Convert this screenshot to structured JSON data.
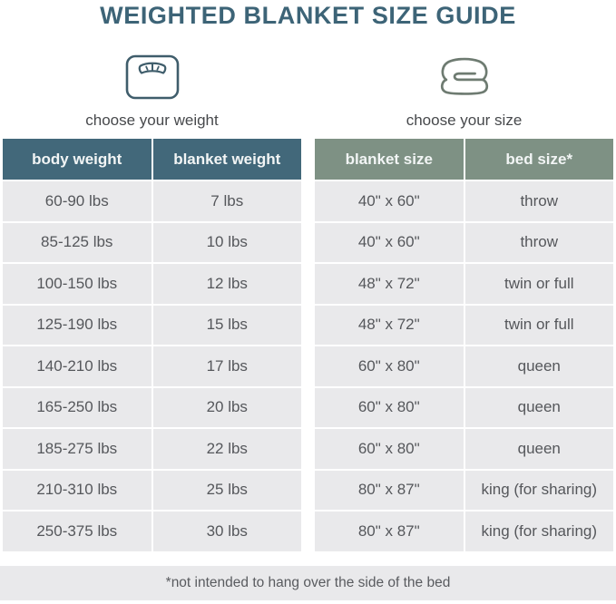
{
  "title": "WEIGHTED BLANKET SIZE GUIDE",
  "weight_section": {
    "icon": "scale-icon",
    "caption": "choose your weight",
    "columns": [
      "body weight",
      "blanket weight"
    ],
    "rows": [
      [
        "60-90 lbs",
        "7 lbs"
      ],
      [
        "85-125 lbs",
        "10 lbs"
      ],
      [
        "100-150 lbs",
        "12 lbs"
      ],
      [
        "125-190 lbs",
        "15 lbs"
      ],
      [
        "140-210 lbs",
        "17 lbs"
      ],
      [
        "165-250 lbs",
        "20 lbs"
      ],
      [
        "185-275 lbs",
        "22 lbs"
      ],
      [
        "210-310 lbs",
        "25 lbs"
      ],
      [
        "250-375 lbs",
        "30 lbs"
      ]
    ]
  },
  "size_section": {
    "icon": "blanket-icon",
    "caption": "choose your size",
    "columns": [
      "blanket size",
      "bed size*"
    ],
    "rows": [
      [
        "40\" x 60\"",
        "throw"
      ],
      [
        "40\" x 60\"",
        "throw"
      ],
      [
        "48\" x 72\"",
        "twin or full"
      ],
      [
        "48\" x 72\"",
        "twin or full"
      ],
      [
        "60\" x 80\"",
        "queen"
      ],
      [
        "60\" x 80\"",
        "queen"
      ],
      [
        "60\" x 80\"",
        "queen"
      ],
      [
        "80\" x 87\"",
        "king (for sharing)"
      ],
      [
        "80\" x 87\"",
        "king (for sharing)"
      ]
    ]
  },
  "footnote": "*not intended to hang over the side of the bed",
  "colors": {
    "title": "#3d6477",
    "weight_header_bg": "#42687a",
    "size_header_bg": "#7e9184",
    "header_text": "#f2f5f5",
    "row_bg": "#e9e9eb",
    "row_text": "#55575b",
    "scale_icon_stroke": "#3f5d6b",
    "blanket_icon_stroke": "#6e7b71"
  }
}
